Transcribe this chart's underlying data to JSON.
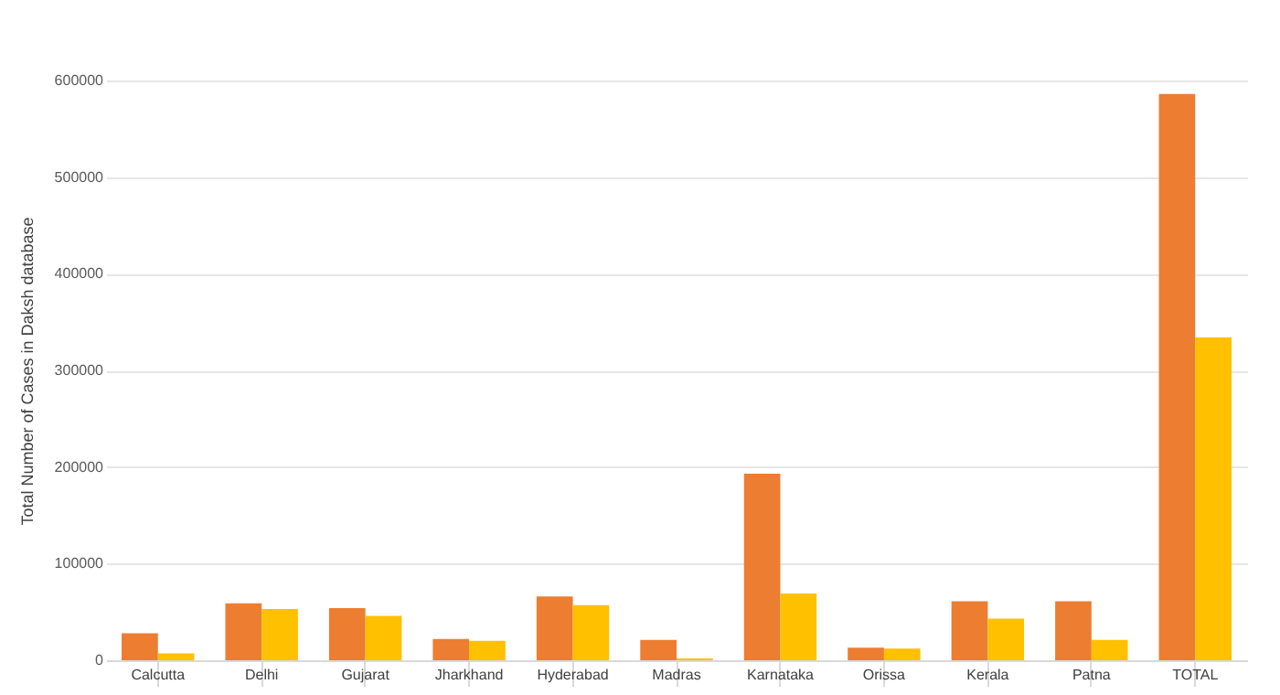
{
  "chart_data": {
    "type": "bar",
    "ylabel": "Total Number of Cases in Daksh database",
    "categories": [
      "Calcutta",
      "Delhi",
      "Gujarat",
      "Jharkhand",
      "Hyderabad",
      "Madras",
      "Karnataka",
      "Orissa",
      "Kerala",
      "Patna",
      "TOTAL"
    ],
    "series": [
      {
        "color": "#ed7d31",
        "values": [
          28000,
          59000,
          54000,
          22000,
          66000,
          21000,
          193000,
          13000,
          61000,
          61000,
          586000
        ]
      },
      {
        "color": "#ffc000",
        "values": [
          7000,
          53000,
          46000,
          20000,
          57000,
          2000,
          69000,
          12000,
          43000,
          21000,
          334000
        ]
      }
    ],
    "ylim": [
      0,
      600000
    ],
    "yticks": [
      0,
      100000,
      200000,
      300000,
      400000,
      500000,
      600000
    ],
    "grid": "y",
    "legend": false
  }
}
